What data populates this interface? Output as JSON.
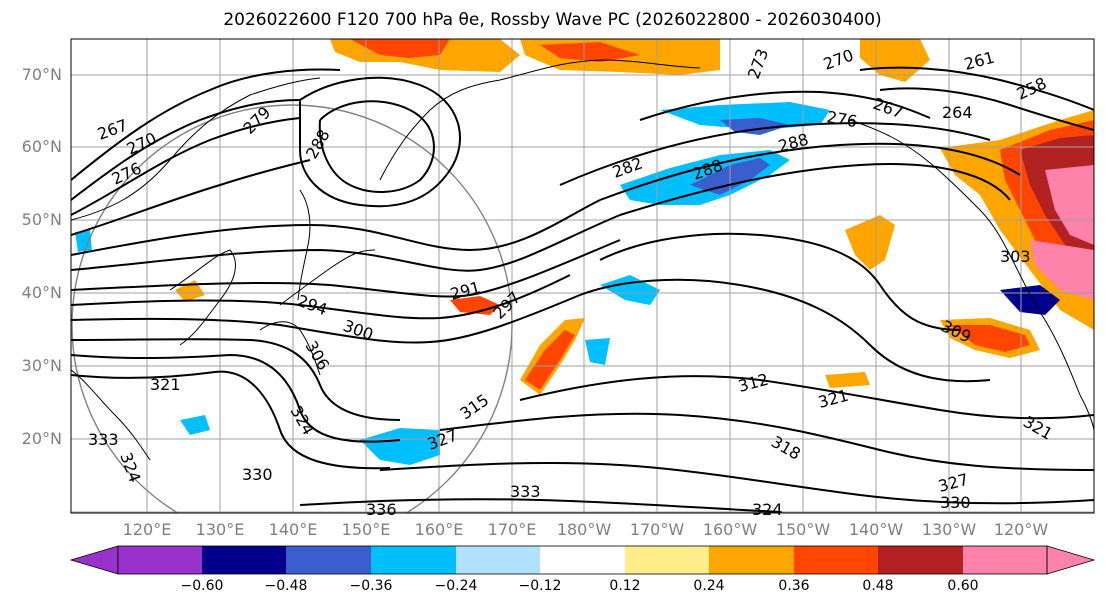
{
  "title": "2026022600 F120 700 hPa θe, Rossby Wave PC (2026022800 - 2026030400)",
  "lat_labels": [
    "70°N",
    "60°N",
    "50°N",
    "40°N",
    "30°N",
    "20°N"
  ],
  "lon_labels": [
    "120°E",
    "130°E",
    "140°E",
    "150°E",
    "160°E",
    "170°E",
    "180°W",
    "170°W",
    "160°W",
    "150°W",
    "140°W",
    "130°W",
    "120°W"
  ],
  "contour_labels": [
    "267",
    "270",
    "276",
    "279",
    "288",
    "282",
    "288",
    "288",
    "270",
    "273",
    "261",
    "267",
    "264",
    "258",
    "276",
    "303",
    "309",
    "294",
    "300",
    "306",
    "291",
    "297",
    "312",
    "321",
    "318",
    "321",
    "315",
    "327",
    "330",
    "321",
    "324",
    "330",
    "336",
    "333",
    "324",
    "333",
    "327",
    "324"
  ],
  "colorbar": {
    "colors": [
      "#9932cc",
      "#00008b",
      "#3a5fcd",
      "#00bfff",
      "#b0e2ff",
      "#ffffff",
      "#ffec8b",
      "#ffa500",
      "#ff4500",
      "#b22222",
      "#ff82ab"
    ],
    "tick_labels": [
      "−0.60",
      "−0.48",
      "−0.36",
      "−0.24",
      "−0.12",
      "0.12",
      "0.24",
      "0.36",
      "0.48",
      "0.60"
    ]
  },
  "colors": {
    "grid": "#a0a0a0",
    "contour": "#000000",
    "coast": "#000000"
  }
}
